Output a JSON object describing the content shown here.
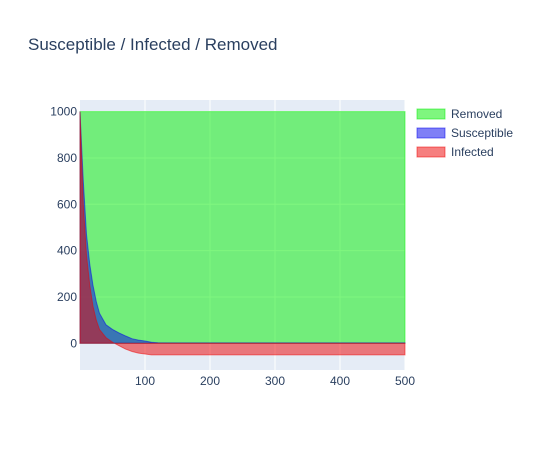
{
  "chart_data": {
    "type": "area",
    "title": "Susceptible / Infected / Removed",
    "xlabel": "",
    "ylabel": "",
    "xlim": [
      0,
      500
    ],
    "ylim": [
      -115,
      1050
    ],
    "x_ticks": [
      100,
      200,
      300,
      400,
      500
    ],
    "y_ticks": [
      0,
      200,
      400,
      600,
      800,
      1000
    ],
    "grid": true,
    "legend_position": "top-right",
    "legend": [
      {
        "name": "Removed",
        "color": "#00ee00"
      },
      {
        "name": "Susceptible",
        "color": "#0000ee"
      },
      {
        "name": "Infected",
        "color": "#ee0000"
      }
    ],
    "x": [
      0,
      2,
      5,
      10,
      15,
      20,
      25,
      30,
      40,
      50,
      60,
      70,
      80,
      90,
      100,
      110,
      120,
      150,
      200,
      300,
      400,
      500
    ],
    "series": [
      {
        "name": "Infected",
        "color": "#ee0000",
        "values": [
          1000,
          830,
          600,
          380,
          250,
          160,
          100,
          60,
          25,
          5,
          -10,
          -25,
          -35,
          -42,
          -46,
          -50,
          -50,
          -50,
          -50,
          -50,
          -50,
          -50
        ]
      },
      {
        "name": "Susceptible",
        "color": "#0000ee",
        "values": [
          1000,
          880,
          700,
          470,
          340,
          250,
          180,
          130,
          80,
          60,
          45,
          32,
          20,
          14,
          10,
          5,
          3,
          2,
          2,
          2,
          2,
          2
        ]
      },
      {
        "name": "Removed",
        "color": "#00ee00",
        "values": [
          1000,
          1000,
          1000,
          1000,
          1000,
          1000,
          1000,
          1000,
          1000,
          1000,
          1000,
          1000,
          1000,
          1000,
          1000,
          1000,
          1000,
          1000,
          1000,
          1000,
          1000,
          1000
        ]
      }
    ]
  }
}
